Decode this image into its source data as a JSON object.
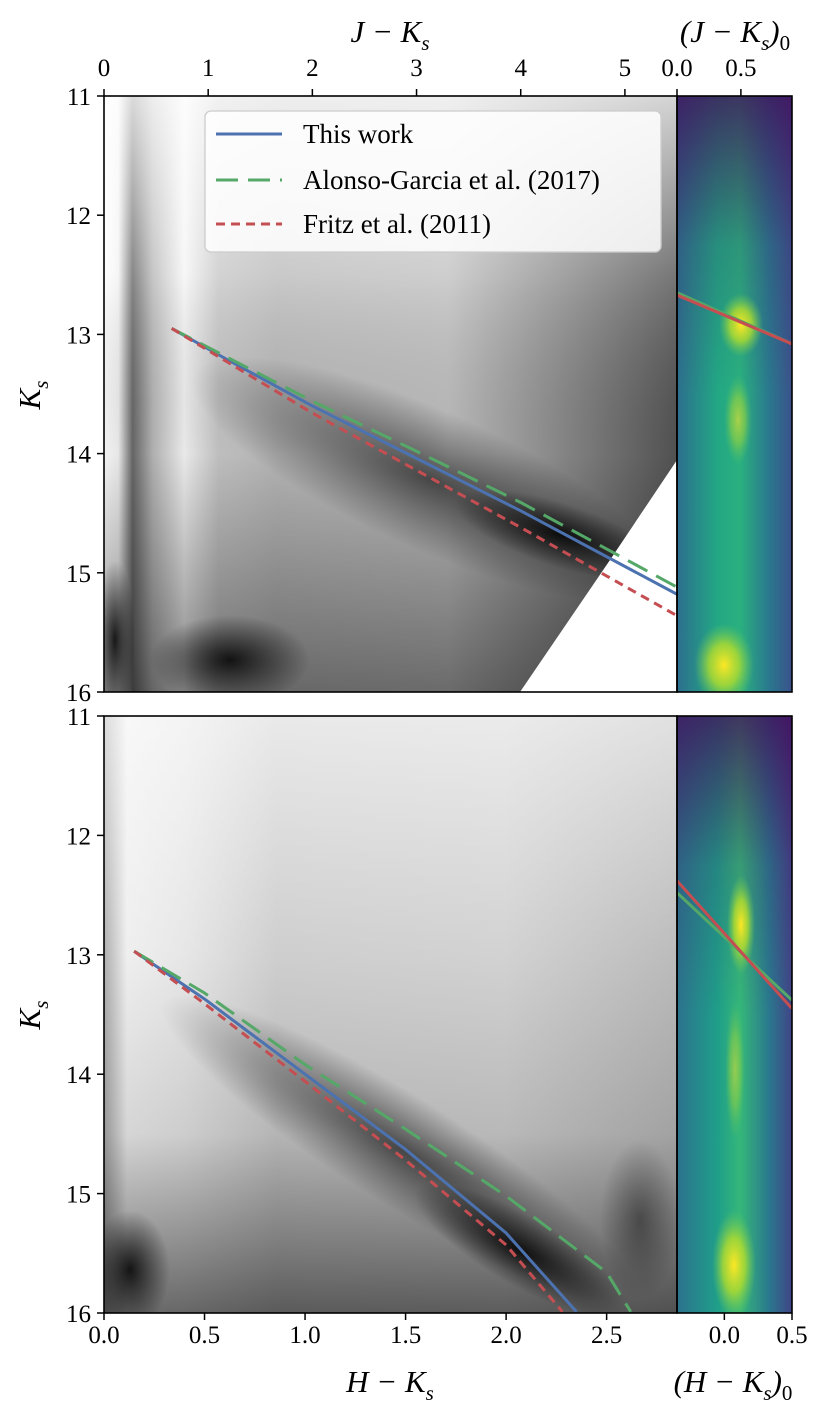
{
  "chart_data": [
    {
      "id": "top-cmd",
      "type": "heatmap",
      "xlabel": "J − K",
      "xlabel_sub": "s",
      "ylabel": "K",
      "ylabel_sub": "s",
      "xlim": [
        0,
        5.5
      ],
      "ylim": [
        16,
        11
      ],
      "xticks": [
        "0",
        "1",
        "2",
        "3",
        "4",
        "5"
      ],
      "yticks": [
        "11",
        "12",
        "13",
        "14",
        "15",
        "16"
      ],
      "series": [
        {
          "name": "This work",
          "color": "#4c72b0",
          "style": "solid",
          "x": [
            0.65,
            1.2,
            2.0,
            3.0,
            4.0,
            5.5
          ],
          "y": [
            12.95,
            13.22,
            13.6,
            14.04,
            14.48,
            15.18
          ]
        },
        {
          "name": "Alonso-Garcia et al. (2017)",
          "color": "#55a868",
          "style": "long-dash",
          "x": [
            0.65,
            1.2,
            2.0,
            3.0,
            4.0,
            5.5
          ],
          "y": [
            12.95,
            13.2,
            13.56,
            13.98,
            14.41,
            15.12
          ]
        },
        {
          "name": "Fritz et al. (2011)",
          "color": "#c44e52",
          "style": "short-dash",
          "x": [
            0.65,
            1.2,
            2.0,
            3.0,
            4.0,
            5.5
          ],
          "y": [
            12.95,
            13.24,
            13.66,
            14.14,
            14.62,
            15.36
          ]
        }
      ],
      "legend": {
        "placement": "upper-right",
        "entries": [
          "This work",
          "Alonso-Garcia et al. (2017)",
          "Fritz et al. (2011)"
        ]
      }
    },
    {
      "id": "top-side",
      "type": "heatmap",
      "xlabel": "(J − K",
      "xlabel_sub": "s",
      "xlabel_tail": ")",
      "xlabel_sub2": "0",
      "xlim": [
        0.0,
        0.9
      ],
      "ylim": [
        16,
        11
      ],
      "xticks": [
        "0.0",
        "0.5"
      ],
      "colormap": "viridis",
      "series": [
        {
          "name": "Alonso-Garcia et al. (2017)",
          "color": "#55a868",
          "x": [
            0.0,
            0.9
          ],
          "y": [
            12.65,
            13.08
          ]
        },
        {
          "name": "Fritz et al. (2011)",
          "color": "#c44e52",
          "x": [
            0.0,
            0.9
          ],
          "y": [
            12.67,
            13.08
          ]
        }
      ]
    },
    {
      "id": "bottom-cmd",
      "type": "heatmap",
      "xlabel": "H − K",
      "xlabel_sub": "s",
      "ylabel": "K",
      "ylabel_sub": "s",
      "xlim": [
        0.0,
        2.85
      ],
      "ylim": [
        16,
        11
      ],
      "xticks": [
        "0.0",
        "0.5",
        "1.0",
        "1.5",
        "2.0",
        "2.5"
      ],
      "yticks": [
        "11",
        "12",
        "13",
        "14",
        "15",
        "16"
      ],
      "series": [
        {
          "name": "This work",
          "color": "#4c72b0",
          "style": "solid",
          "x": [
            0.15,
            0.5,
            1.0,
            1.5,
            2.0,
            2.35
          ],
          "y": [
            12.97,
            13.37,
            14.0,
            14.63,
            15.33,
            15.99
          ]
        },
        {
          "name": "Alonso-Garcia et al. (2017)",
          "color": "#55a868",
          "style": "long-dash",
          "x": [
            0.15,
            0.5,
            1.0,
            1.5,
            2.0,
            2.5,
            2.62
          ],
          "y": [
            12.97,
            13.32,
            13.92,
            14.46,
            15.02,
            15.66,
            15.99
          ]
        },
        {
          "name": "Fritz et al. (2011)",
          "color": "#c44e52",
          "style": "short-dash",
          "x": [
            0.15,
            0.5,
            1.0,
            1.5,
            2.0,
            2.28
          ],
          "y": [
            12.97,
            13.41,
            14.06,
            14.72,
            15.43,
            15.99
          ]
        }
      ]
    },
    {
      "id": "bottom-side",
      "type": "heatmap",
      "xlabel": "(H − K",
      "xlabel_sub": "s",
      "xlabel_tail": ")",
      "xlabel_sub2": "0",
      "xlim": [
        -0.35,
        0.5
      ],
      "ylim": [
        16,
        11
      ],
      "xticks": [
        "0.0",
        "0.5"
      ],
      "colormap": "viridis",
      "series": [
        {
          "name": "Alonso-Garcia et al. (2017)",
          "color": "#55a868",
          "x": [
            -0.35,
            0.5
          ],
          "y": [
            12.48,
            13.38
          ]
        },
        {
          "name": "Fritz et al. (2011)",
          "color": "#c44e52",
          "x": [
            -0.35,
            0.5
          ],
          "y": [
            12.38,
            13.45
          ]
        }
      ]
    }
  ]
}
